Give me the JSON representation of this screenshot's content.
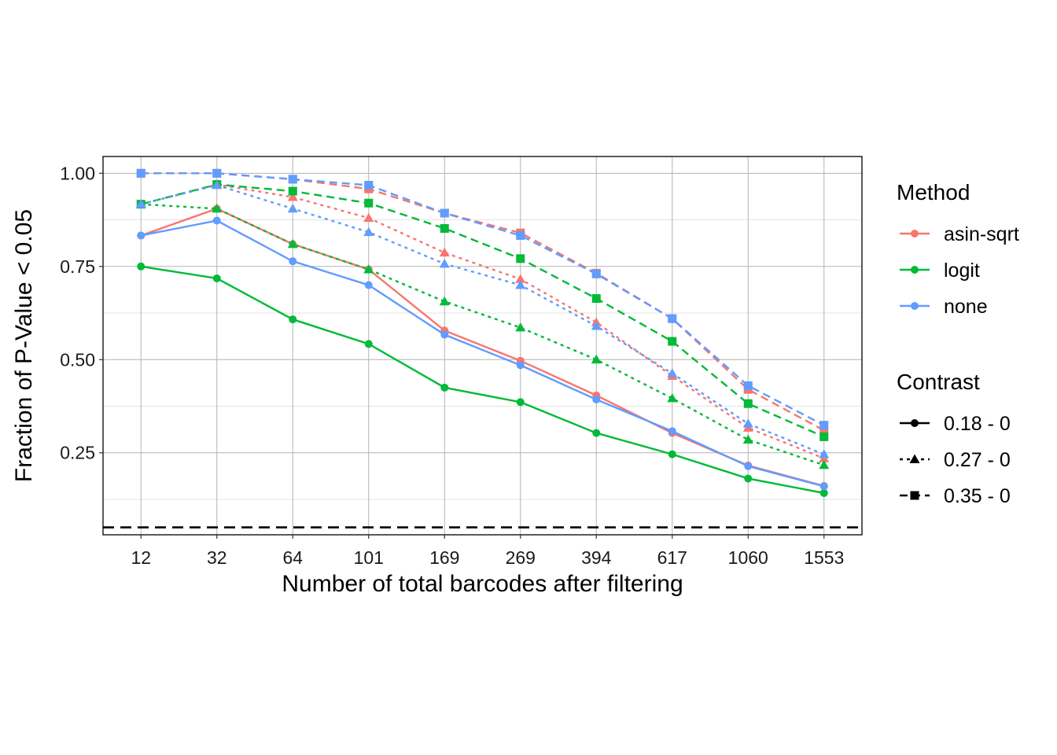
{
  "chart_data": {
    "type": "line",
    "xlabel": "Number of total barcodes after filtering",
    "ylabel": "Fraction of P-Value < 0.05",
    "categories": [
      "12",
      "32",
      "64",
      "101",
      "169",
      "269",
      "394",
      "617",
      "1060",
      "1553"
    ],
    "ylim": [
      0.03,
      1.045
    ],
    "yticks": [
      0.25,
      0.5,
      0.75,
      1.0
    ],
    "ytick_labels": [
      "0.25",
      "0.50",
      "0.75",
      "1.00"
    ],
    "grid": true,
    "reference_line": {
      "y": 0.05,
      "style": "dashed",
      "color": "#000000"
    },
    "legend": {
      "method_title": "Method",
      "methods": [
        {
          "name": "asin-sqrt",
          "color": "#F8766D"
        },
        {
          "name": "logit",
          "color": "#00BA38"
        },
        {
          "name": "none",
          "color": "#619CFF"
        }
      ],
      "contrast_title": "Contrast",
      "contrasts": [
        {
          "name": "0.18 - 0",
          "shape": "circle",
          "dash": "solid"
        },
        {
          "name": "0.27 - 0",
          "shape": "triangle",
          "dash": "dotted"
        },
        {
          "name": "0.35 - 0",
          "shape": "square",
          "dash": "dashed"
        }
      ]
    },
    "series": [
      {
        "method": "asin-sqrt",
        "contrast": "0.18 - 0",
        "values": [
          0.833,
          0.905,
          0.81,
          0.742,
          0.578,
          0.497,
          0.404,
          0.303,
          0.216,
          0.161
        ]
      },
      {
        "method": "asin-sqrt",
        "contrast": "0.27 - 0",
        "values": [
          0.917,
          0.97,
          0.936,
          0.88,
          0.787,
          0.716,
          0.6,
          0.456,
          0.317,
          0.235
        ]
      },
      {
        "method": "asin-sqrt",
        "contrast": "0.35 - 0",
        "values": [
          1.0,
          1.0,
          0.984,
          0.958,
          0.893,
          0.84,
          0.732,
          0.61,
          0.42,
          0.31
        ]
      },
      {
        "method": "logit",
        "contrast": "0.18 - 0",
        "values": [
          0.75,
          0.718,
          0.608,
          0.542,
          0.425,
          0.386,
          0.303,
          0.246,
          0.181,
          0.142
        ]
      },
      {
        "method": "logit",
        "contrast": "0.27 - 0",
        "values": [
          0.917,
          0.905,
          0.81,
          0.742,
          0.656,
          0.586,
          0.5,
          0.396,
          0.285,
          0.217
        ]
      },
      {
        "method": "logit",
        "contrast": "0.35 - 0",
        "values": [
          0.917,
          0.97,
          0.952,
          0.92,
          0.852,
          0.771,
          0.664,
          0.549,
          0.382,
          0.293
        ]
      },
      {
        "method": "none",
        "contrast": "0.18 - 0",
        "values": [
          0.833,
          0.873,
          0.764,
          0.7,
          0.567,
          0.485,
          0.393,
          0.308,
          0.214,
          0.16
        ]
      },
      {
        "method": "none",
        "contrast": "0.27 - 0",
        "values": [
          0.917,
          0.968,
          0.905,
          0.842,
          0.757,
          0.7,
          0.59,
          0.463,
          0.328,
          0.246
        ]
      },
      {
        "method": "none",
        "contrast": "0.35 - 0",
        "values": [
          1.0,
          1.0,
          0.984,
          0.968,
          0.893,
          0.833,
          0.73,
          0.61,
          0.43,
          0.324
        ]
      }
    ]
  }
}
